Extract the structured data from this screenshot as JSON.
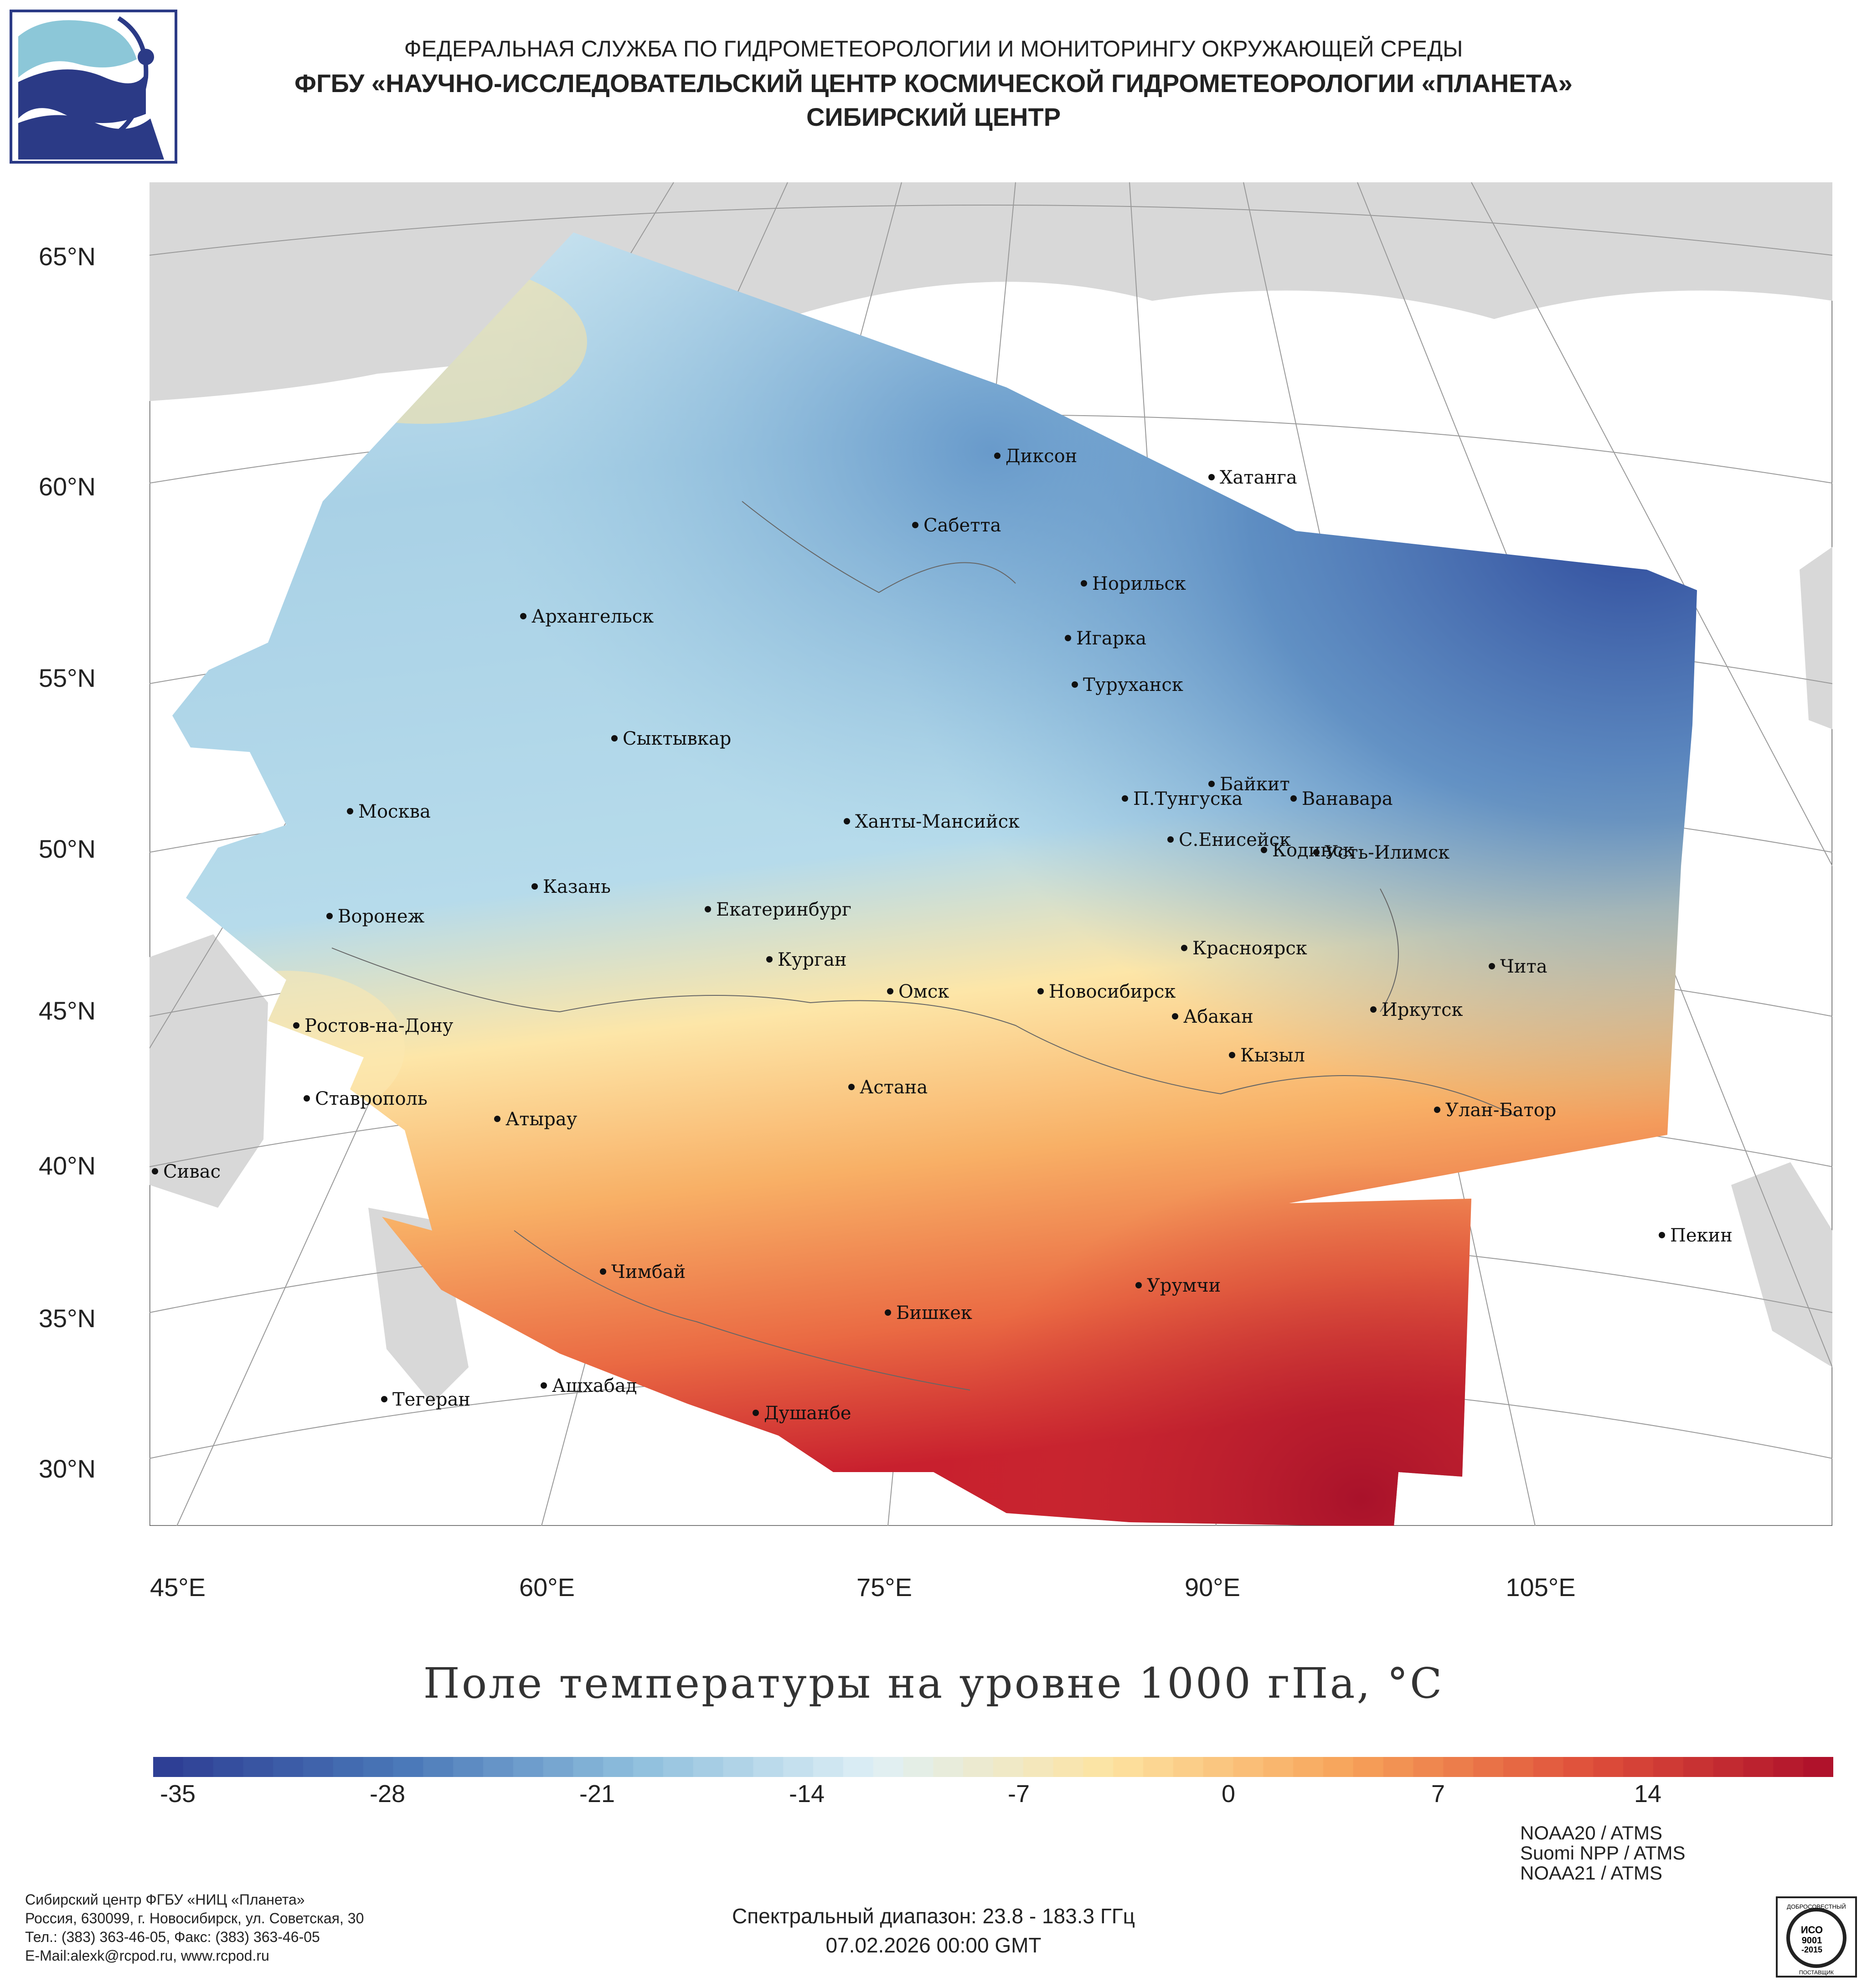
{
  "header": {
    "line1": "ФЕДЕРАЛЬНАЯ СЛУЖБА ПО ГИДРОМЕТЕОРОЛОГИИ И МОНИТОРИНГУ ОКРУЖАЮЩЕЙ СРЕДЫ",
    "line2": "ФГБУ «НАУЧНО-ИССЛЕДОВАТЕЛЬСКИЙ ЦЕНТР КОСМИЧЕСКОЙ ГИДРОМЕТЕОРОЛОГИИ «ПЛАНЕТА»",
    "line3": "СИБИРСКИЙ ЦЕНТР"
  },
  "map": {
    "lat_labels": [
      "65°N",
      "60°N",
      "55°N",
      "50°N",
      "45°N",
      "40°N",
      "35°N",
      "30°N"
    ],
    "lon_labels": [
      "45°E",
      "60°E",
      "75°E",
      "90°E",
      "105°E"
    ],
    "cities": [
      "Диксон",
      "Хатанга",
      "Сабетта",
      "Норильск",
      "Архангельск",
      "Игарка",
      "Туруханск",
      "Сыктывкар",
      "Байкит",
      "П.Тунгуска",
      "Ванавара",
      "Москва",
      "Ханты-Мансийск",
      "С.Енисейск",
      "Кодинск",
      "Усть-Илимск",
      "Казань",
      "Екатеринбург",
      "Воронеж",
      "Красноярск",
      "Курган",
      "Чита",
      "Омск",
      "Новосибирск",
      "Иркутск",
      "Абакан",
      "Ростов-на-Дону",
      "Кызыл",
      "Астана",
      "Ставрополь",
      "Улан-Батор",
      "Атырау",
      "Сивас",
      "Пекин",
      "Чимбай",
      "Урумчи",
      "Бишкек",
      "Ашхабад",
      "Тегеран",
      "Душанбе"
    ]
  },
  "title": "Поле температуры на уровне 1000 гПа, °C",
  "colorbar": {
    "ticks": [
      "-35",
      "-28",
      "-21",
      "-14",
      "-7",
      "0",
      "7",
      "14"
    ],
    "min": -36,
    "max": 20,
    "colors": [
      "#2e3f95",
      "#4a78b8",
      "#8fbfdd",
      "#dff0f6",
      "#fde3a0",
      "#f7a45a",
      "#e0513b",
      "#b0122b"
    ]
  },
  "footer": {
    "org": "Сибирский центр ФГБУ «НИЦ «Планета»",
    "address": "Россия, 630099, г. Новосибирск, ул. Советская, 30",
    "phone": "Тел.: (383) 363-46-05, Факс: (383) 363-46-05",
    "email": "E-Mail:alexk@rcpod.ru, www.rcpod.ru",
    "spectral": "Спектральный диапазон: 23.8 - 183.3 ГГц",
    "datetime": "07.02.2026 00:00 GMT",
    "sat1": "NOAA20 / ATMS",
    "sat2": "Suomi NPP / ATMS",
    "sat3": "NOAA21 / ATMS",
    "cert_top": "ДОБРОСОВЕСТНЫЙ",
    "cert_main": "ИСО",
    "cert_num": "9001",
    "cert_year": "-2015",
    "cert_bottom": "ПОСТАВЩИК"
  }
}
